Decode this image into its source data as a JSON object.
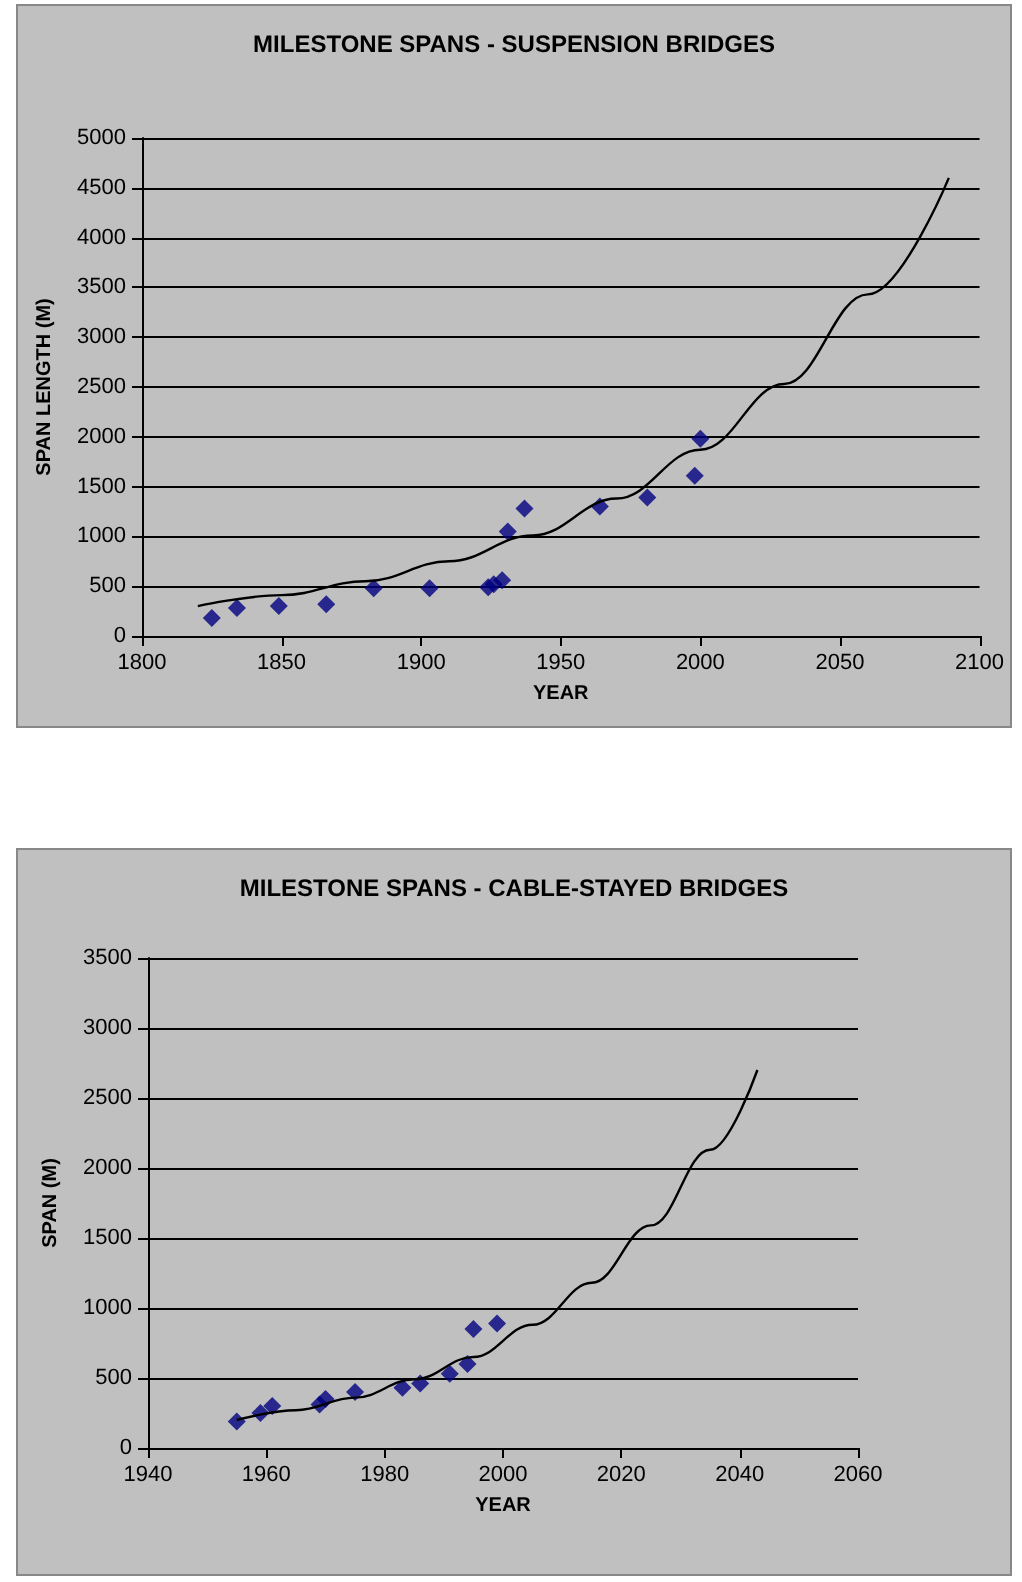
{
  "chart_data": [
    {
      "type": "scatter",
      "title": "MILESTONE SPANS - SUSPENSION BRIDGES",
      "xlabel": "YEAR",
      "ylabel": "SPAN LENGTH (M)",
      "xlim": [
        1800,
        2100
      ],
      "xticks": [
        1800,
        1850,
        1900,
        1950,
        2000,
        2050,
        2100
      ],
      "ylim": [
        0,
        5000
      ],
      "yticks": [
        0,
        500,
        1000,
        1500,
        2000,
        2500,
        3000,
        3500,
        4000,
        4500,
        5000
      ],
      "grid": "y",
      "marker": "diamond",
      "series": [
        {
          "color": "#000080",
          "x": [
            1825,
            1834,
            1849,
            1866,
            1883,
            1903,
            1924,
            1926,
            1929,
            1931,
            1937,
            1964,
            1981,
            1998,
            2000
          ],
          "values": [
            180,
            280,
            300,
            320,
            480,
            480,
            490,
            520,
            560,
            1050,
            1280,
            1300,
            1390,
            1610,
            1980
          ]
        },
        {
          "type": "line",
          "color": "#000000",
          "marker": "none",
          "line_style": "solid",
          "x": [
            1820,
            1850,
            1880,
            1910,
            1940,
            1970,
            2000,
            2030,
            2060,
            2089
          ],
          "values": [
            300,
            410,
            550,
            750,
            1010,
            1380,
            1870,
            2530,
            3430,
            4600
          ]
        }
      ]
    },
    {
      "type": "scatter",
      "title": "MILESTONE SPANS - CABLE-STAYED BRIDGES",
      "xlabel": "YEAR",
      "ylabel": "SPAN (M)",
      "xlim": [
        1940,
        2060
      ],
      "xticks": [
        1940,
        1960,
        1980,
        2000,
        2020,
        2040,
        2060
      ],
      "ylim": [
        0,
        3500
      ],
      "yticks": [
        0,
        500,
        1000,
        1500,
        2000,
        2500,
        3000,
        3500
      ],
      "grid": "y",
      "marker": "diamond",
      "series": [
        {
          "color": "#000080",
          "x": [
            1955,
            1959,
            1961,
            1969,
            1970,
            1975,
            1983,
            1986,
            1991,
            1994,
            1995,
            1999
          ],
          "values": [
            190,
            250,
            300,
            310,
            350,
            400,
            430,
            460,
            530,
            600,
            850,
            890
          ]
        },
        {
          "type": "line",
          "color": "#000000",
          "marker": "none",
          "line_style": "solid",
          "x": [
            1955,
            1965,
            1975,
            1985,
            1995,
            2005,
            2015,
            2025,
            2035,
            2043
          ],
          "values": [
            200,
            270,
            360,
            490,
            650,
            880,
            1180,
            1590,
            2130,
            2700
          ]
        }
      ]
    }
  ]
}
